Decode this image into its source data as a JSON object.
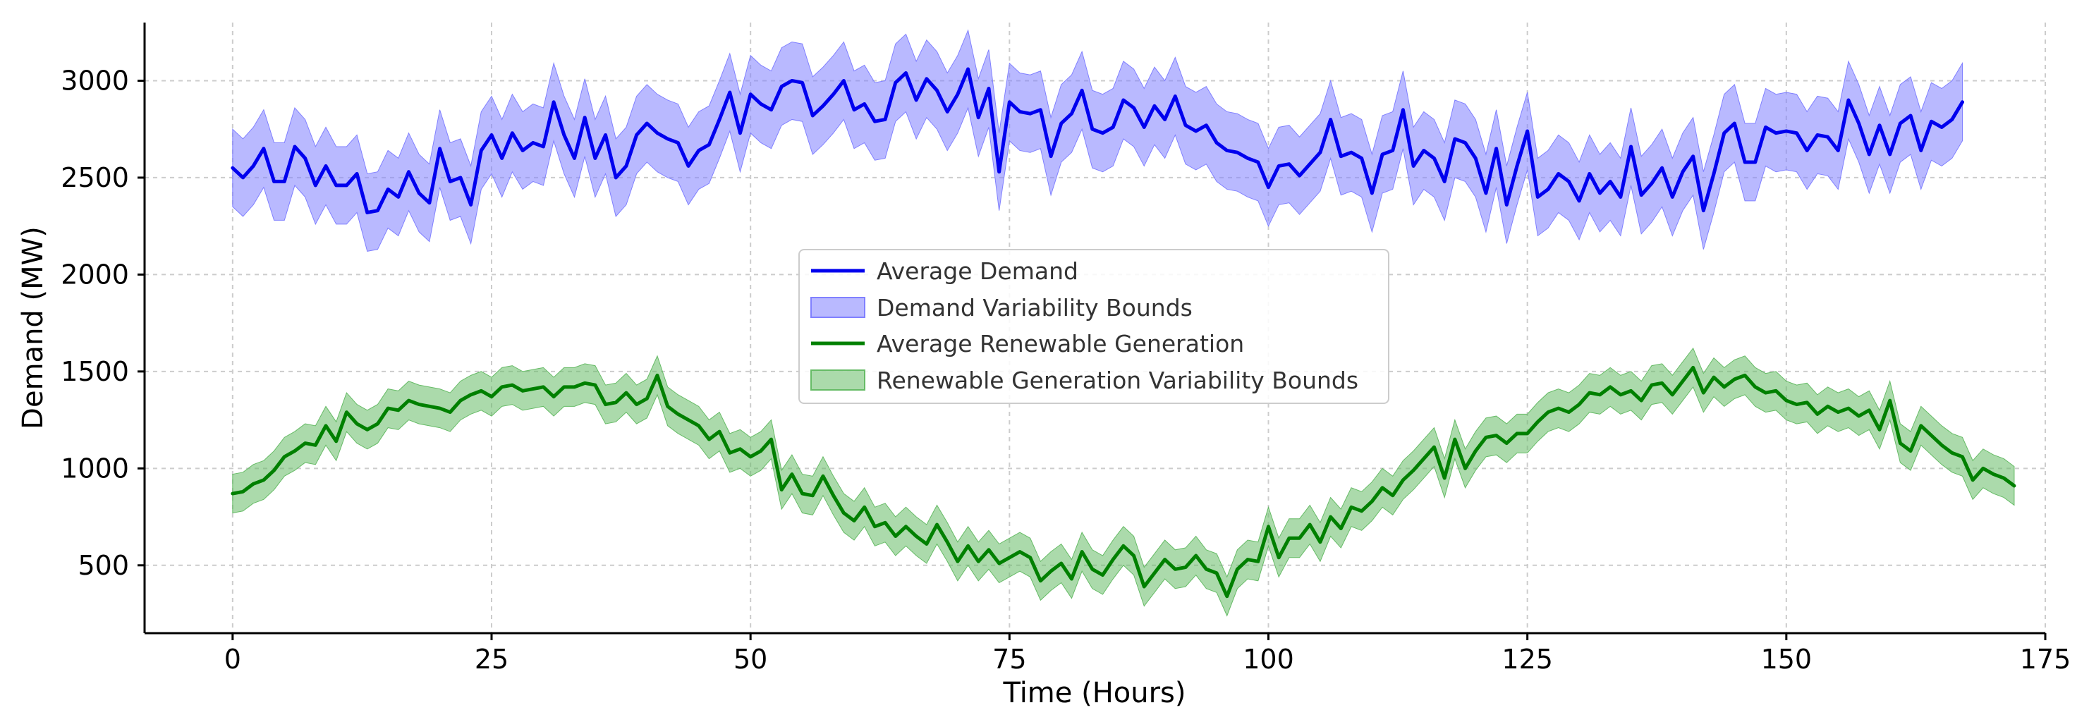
{
  "chart_data": {
    "type": "line",
    "title": "",
    "xlabel": "Time (Hours)",
    "ylabel": "Demand (MW)",
    "xlim": [
      -8.5,
      175
    ],
    "ylim": [
      150,
      3300
    ],
    "xticks": [
      0,
      25,
      50,
      75,
      100,
      125,
      150,
      175
    ],
    "yticks": [
      500,
      1000,
      1500,
      2000,
      2500,
      3000
    ],
    "grid": true,
    "legend_position": "center",
    "series": [
      {
        "name": "Average Demand",
        "kind": "line",
        "color": "#0000ee",
        "x_start": 0,
        "x_step": 1,
        "values": [
          2550,
          2500,
          2560,
          2650,
          2480,
          2480,
          2660,
          2600,
          2460,
          2560,
          2460,
          2460,
          2520,
          2320,
          2330,
          2440,
          2400,
          2530,
          2420,
          2370,
          2650,
          2480,
          2500,
          2360,
          2640,
          2720,
          2600,
          2730,
          2640,
          2680,
          2660,
          2890,
          2720,
          2600,
          2810,
          2600,
          2720,
          2500,
          2560,
          2720,
          2780,
          2730,
          2700,
          2680,
          2560,
          2640,
          2670,
          2800,
          2940,
          2730,
          2930,
          2880,
          2850,
          2970,
          3000,
          2990,
          2820,
          2870,
          2930,
          3000,
          2850,
          2880,
          2790,
          2800,
          2990,
          3040,
          2900,
          3010,
          2950,
          2840,
          2930,
          3060,
          2810,
          2960,
          2530,
          2890,
          2840,
          2830,
          2850,
          2610,
          2780,
          2830,
          2950,
          2750,
          2730,
          2760,
          2900,
          2860,
          2760,
          2870,
          2800,
          2920,
          2770,
          2740,
          2770,
          2680,
          2640,
          2630,
          2600,
          2580,
          2450,
          2560,
          2570,
          2510,
          2570,
          2630,
          2800,
          2610,
          2630,
          2600,
          2420,
          2620,
          2640,
          2850,
          2560,
          2640,
          2600,
          2480,
          2700,
          2680,
          2600,
          2420,
          2650,
          2360,
          2560,
          2740,
          2400,
          2440,
          2520,
          2480,
          2380,
          2520,
          2420,
          2480,
          2400,
          2660,
          2410,
          2470,
          2550,
          2400,
          2530,
          2610,
          2330,
          2520,
          2730,
          2780,
          2580,
          2580,
          2760,
          2730,
          2740,
          2730,
          2640,
          2720,
          2710,
          2640,
          2900,
          2780,
          2620,
          2770,
          2620,
          2780,
          2820,
          2640,
          2790,
          2760,
          2800,
          2890
        ]
      },
      {
        "name": "Demand Variability Bounds",
        "kind": "band",
        "color": "#8080ff",
        "around": "Average Demand",
        "half_width": 200
      },
      {
        "name": "Average Renewable Generation",
        "kind": "line",
        "color": "#008000",
        "x_start": 0,
        "x_step": 1,
        "values": [
          870,
          880,
          920,
          940,
          990,
          1060,
          1090,
          1130,
          1120,
          1220,
          1140,
          1290,
          1230,
          1200,
          1230,
          1310,
          1300,
          1350,
          1330,
          1320,
          1310,
          1290,
          1350,
          1380,
          1400,
          1370,
          1420,
          1430,
          1400,
          1410,
          1420,
          1370,
          1420,
          1420,
          1440,
          1430,
          1330,
          1340,
          1390,
          1330,
          1360,
          1480,
          1320,
          1280,
          1250,
          1220,
          1150,
          1190,
          1080,
          1100,
          1060,
          1090,
          1150,
          890,
          970,
          870,
          860,
          960,
          860,
          770,
          730,
          800,
          700,
          720,
          650,
          700,
          650,
          610,
          710,
          620,
          520,
          600,
          520,
          580,
          510,
          540,
          570,
          540,
          420,
          470,
          510,
          430,
          570,
          480,
          450,
          530,
          600,
          550,
          390,
          460,
          530,
          480,
          490,
          550,
          480,
          460,
          340,
          480,
          530,
          520,
          700,
          540,
          640,
          640,
          710,
          620,
          750,
          690,
          800,
          780,
          830,
          900,
          860,
          940,
          990,
          1050,
          1110,
          950,
          1150,
          1000,
          1090,
          1160,
          1170,
          1130,
          1180,
          1180,
          1240,
          1290,
          1310,
          1290,
          1330,
          1390,
          1380,
          1420,
          1380,
          1400,
          1350,
          1430,
          1440,
          1380,
          1450,
          1520,
          1390,
          1470,
          1420,
          1460,
          1480,
          1420,
          1390,
          1400,
          1350,
          1330,
          1340,
          1280,
          1320,
          1290,
          1310,
          1270,
          1300,
          1200,
          1350,
          1130,
          1090,
          1220,
          1170,
          1120,
          1080,
          1060,
          940,
          1000,
          970,
          950,
          910
        ]
      },
      {
        "name": "Renewable Generation Variability Bounds",
        "kind": "band",
        "color": "#66bb66",
        "around": "Average Renewable Generation",
        "half_width": 100
      }
    ]
  }
}
